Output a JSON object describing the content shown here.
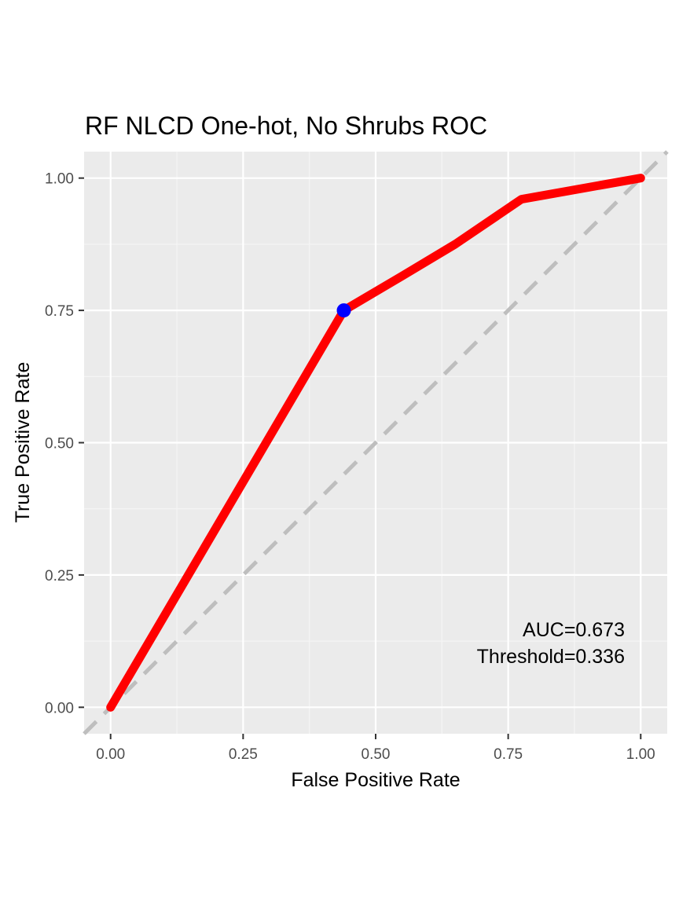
{
  "chart_data": {
    "type": "line",
    "title": "RF NLCD One-hot, No Shrubs ROC",
    "xlabel": "False Positive Rate",
    "ylabel": "True Positive Rate",
    "xlim": [
      -0.05,
      1.05
    ],
    "ylim": [
      -0.05,
      1.05
    ],
    "x_ticks": [
      0.0,
      0.25,
      0.5,
      0.75,
      1.0
    ],
    "x_tick_labels": [
      "0.00",
      "0.25",
      "0.50",
      "0.75",
      "1.00"
    ],
    "y_ticks": [
      0.0,
      0.25,
      0.5,
      0.75,
      1.0
    ],
    "y_tick_labels": [
      "0.00",
      "0.25",
      "0.50",
      "0.75",
      "1.00"
    ],
    "grid": true,
    "series": [
      {
        "x": [
          0.0,
          0.44,
          0.55,
          0.65,
          0.775,
          1.0
        ],
        "y": [
          0.0,
          0.75,
          0.815,
          0.875,
          0.96,
          1.0
        ],
        "color": "#ff0000"
      }
    ],
    "reference_line": {
      "x": [
        -0.05,
        1.05
      ],
      "y": [
        -0.05,
        1.05
      ],
      "color": "#bebebe",
      "style": "dashed"
    },
    "threshold_point": {
      "x": 0.44,
      "y": 0.75,
      "color": "#0000ff"
    },
    "annotations": [
      "AUC=0.673",
      "Threshold=0.336"
    ]
  }
}
